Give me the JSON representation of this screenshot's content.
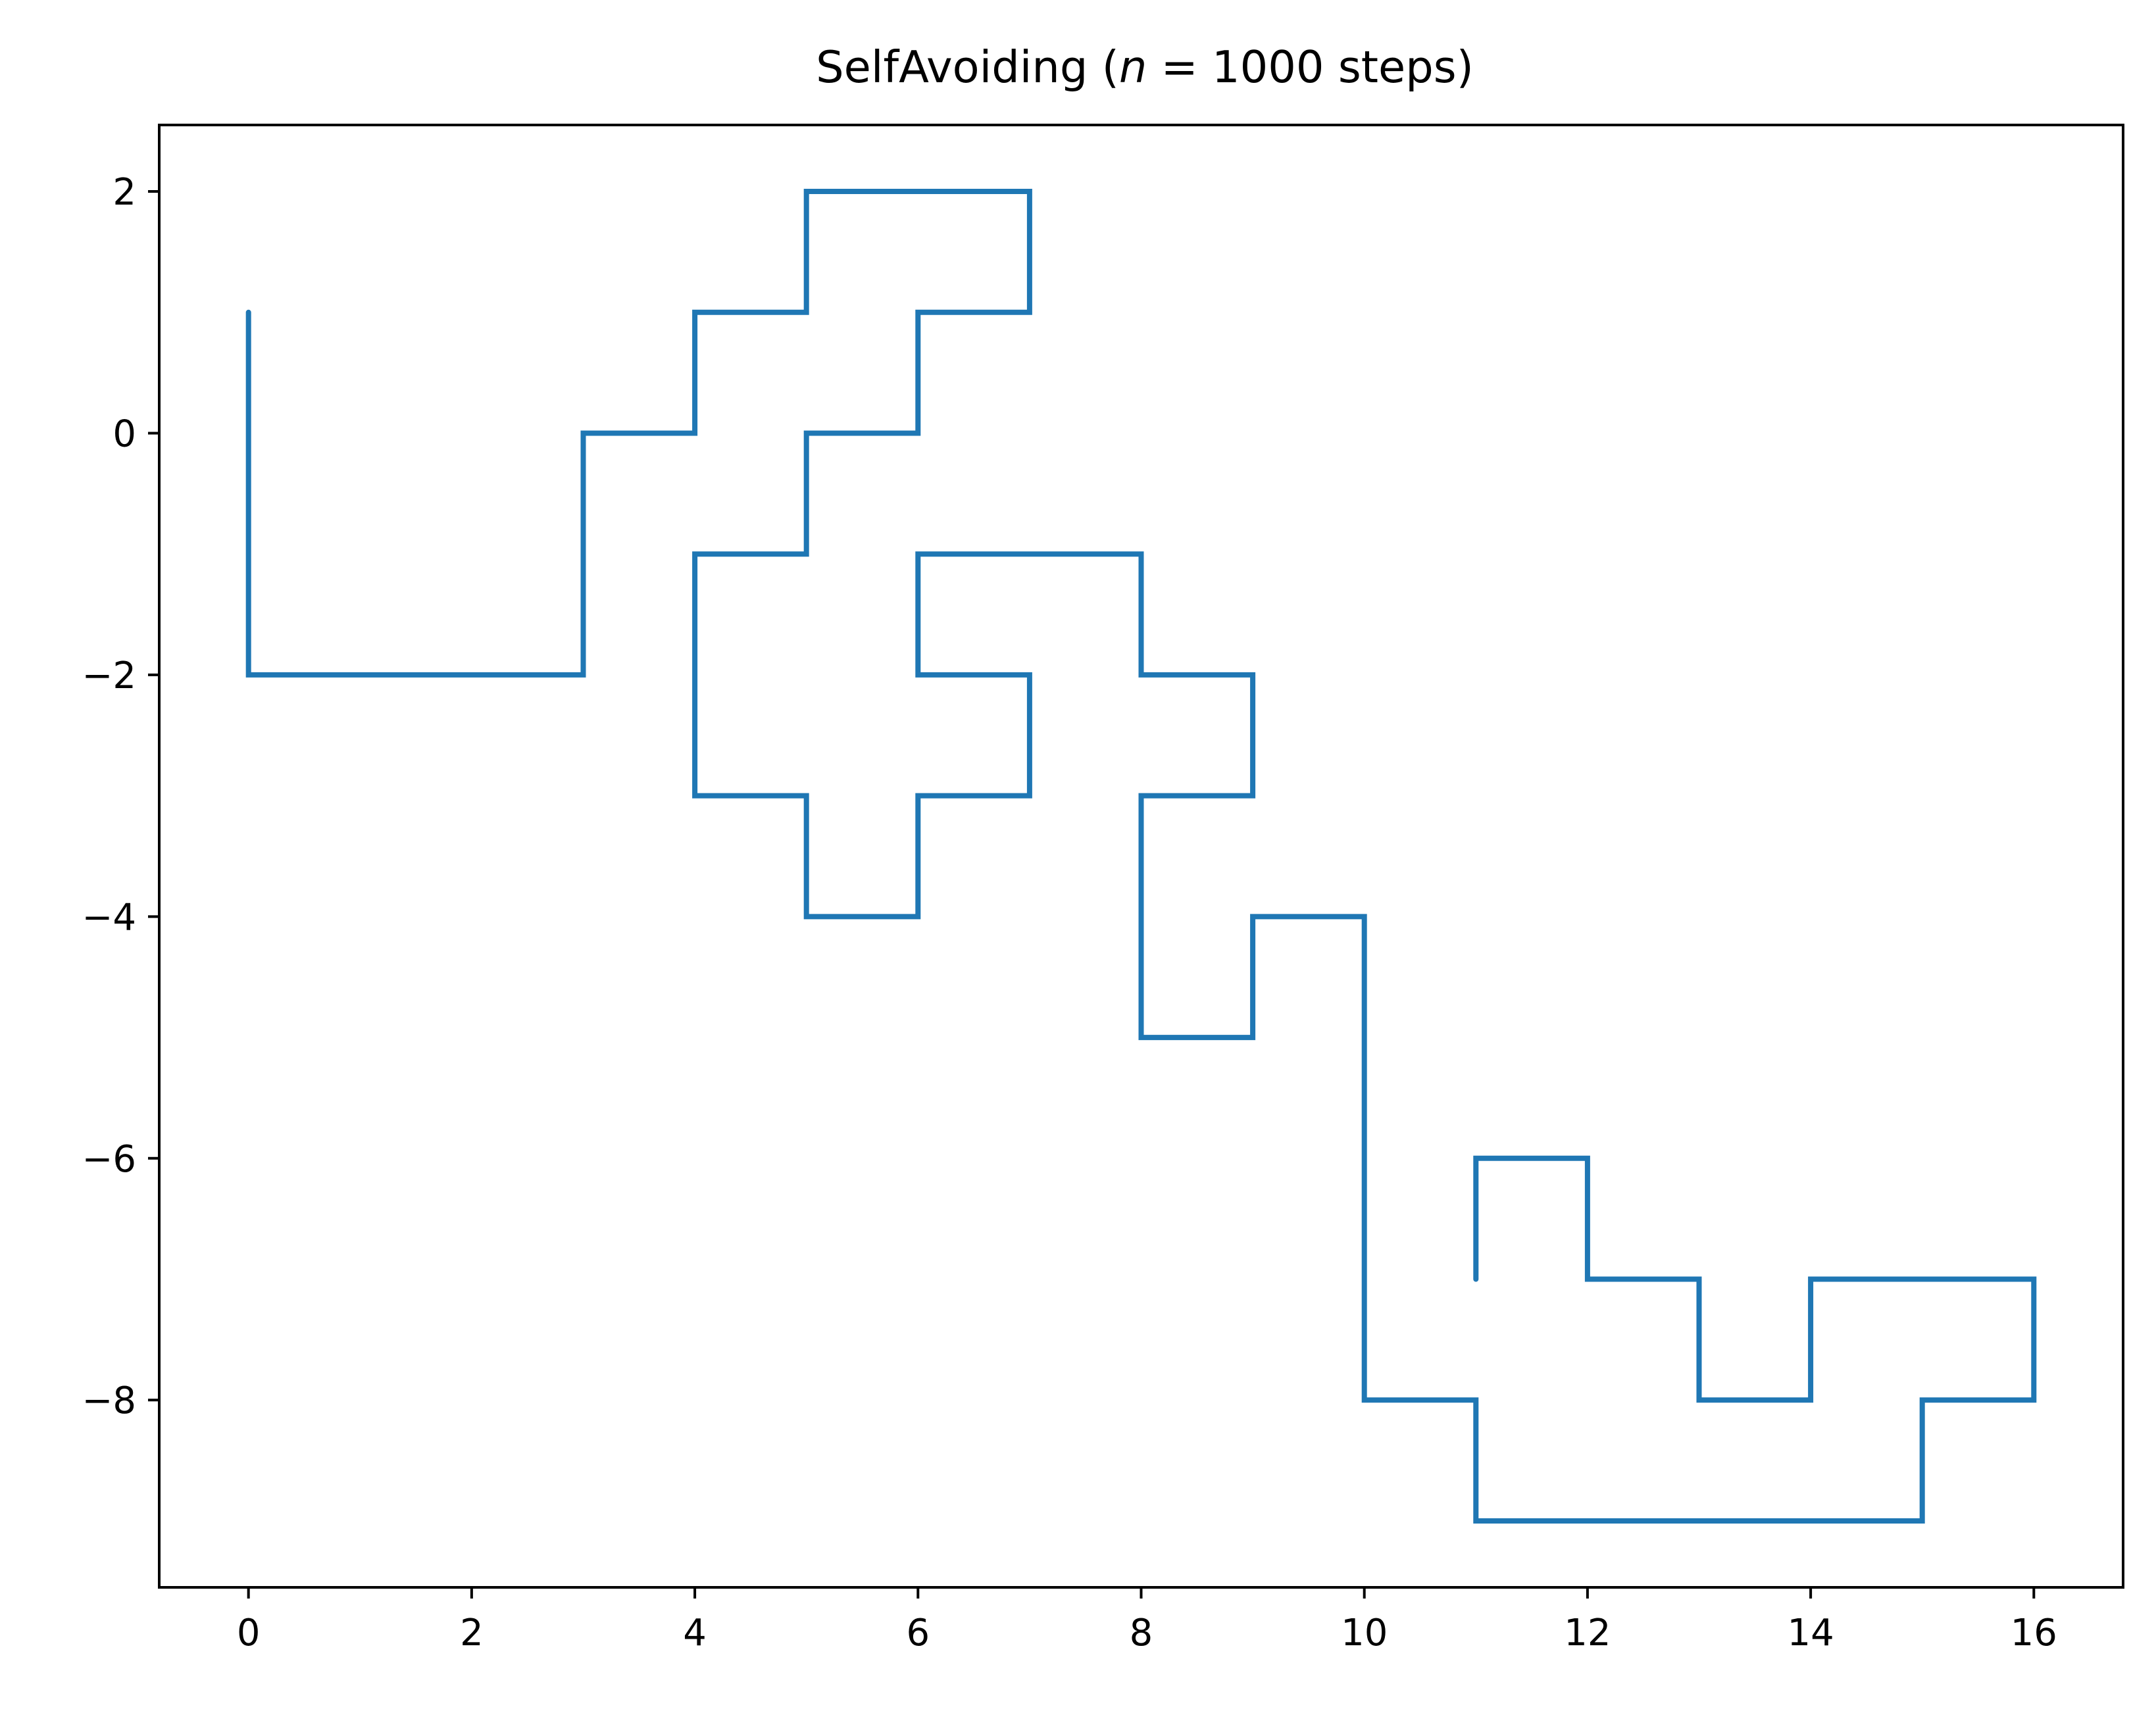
{
  "chart_data": {
    "type": "line",
    "title": {
      "prefix": "SelfAvoiding (",
      "math_var": "n",
      "math_rest": " = 1000",
      "suffix": " steps)"
    },
    "xlabel": "",
    "ylabel": "",
    "xlim": [
      -0.8,
      16.8
    ],
    "ylim": [
      -9.55,
      2.55
    ],
    "x_ticks": [
      0,
      2,
      4,
      6,
      8,
      10,
      12,
      14,
      16
    ],
    "y_ticks": [
      2,
      0,
      -2,
      -4,
      -6,
      -8
    ],
    "x_tick_labels": [
      "0",
      "2",
      "4",
      "6",
      "8",
      "10",
      "12",
      "14",
      "16"
    ],
    "y_tick_labels": [
      "2",
      "0",
      "−2",
      "−4",
      "−6",
      "−8"
    ],
    "grid": false,
    "series": [
      {
        "color": "#1f77b4",
        "points": [
          [
            0,
            1
          ],
          [
            0,
            0
          ],
          [
            0,
            -2
          ],
          [
            3,
            -2
          ],
          [
            3,
            0
          ],
          [
            4,
            0
          ],
          [
            4,
            1
          ],
          [
            5,
            1
          ],
          [
            5,
            2
          ],
          [
            7,
            2
          ],
          [
            7,
            1
          ],
          [
            6,
            1
          ],
          [
            6,
            0
          ],
          [
            5,
            0
          ],
          [
            5,
            -1
          ],
          [
            4,
            -1
          ],
          [
            4,
            -3
          ],
          [
            5,
            -3
          ],
          [
            5,
            -4
          ],
          [
            6,
            -4
          ],
          [
            6,
            -3
          ],
          [
            7,
            -3
          ],
          [
            7,
            -2
          ],
          [
            6,
            -2
          ],
          [
            6,
            -1
          ],
          [
            8,
            -1
          ],
          [
            8,
            -2
          ],
          [
            9,
            -2
          ],
          [
            9,
            -3
          ],
          [
            8,
            -3
          ],
          [
            8,
            -5
          ],
          [
            9,
            -5
          ],
          [
            9,
            -4
          ],
          [
            10,
            -4
          ],
          [
            10,
            -8
          ],
          [
            11,
            -8
          ],
          [
            11,
            -9
          ],
          [
            15,
            -9
          ],
          [
            15,
            -8
          ],
          [
            16,
            -8
          ],
          [
            16,
            -7
          ],
          [
            14,
            -7
          ],
          [
            14,
            -8
          ],
          [
            13,
            -8
          ],
          [
            13,
            -7
          ],
          [
            12,
            -7
          ],
          [
            12,
            -6
          ],
          [
            11,
            -6
          ],
          [
            11,
            -7
          ]
        ]
      }
    ]
  }
}
